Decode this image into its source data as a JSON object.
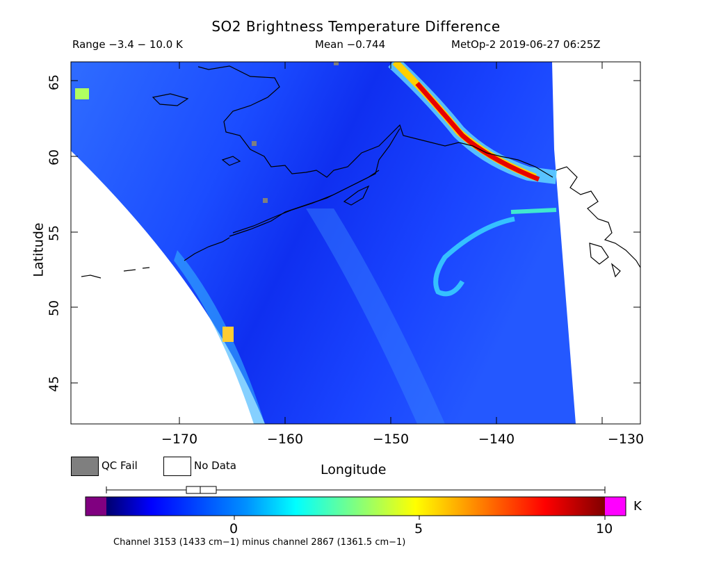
{
  "header": {
    "title": "SO2 Brightness Temperature Difference",
    "range": "Range −3.4 − 10.0 K",
    "mean": "Mean −0.744",
    "satellite_time": "MetOp-2 2019-06-27 06:25Z"
  },
  "axes": {
    "xlabel": "Longitude",
    "ylabel": "Latitude",
    "x_ticks": [
      "−170",
      "−160",
      "−150",
      "−140",
      "−130"
    ],
    "y_ticks": [
      "65",
      "60",
      "55",
      "50",
      "45"
    ],
    "x_range": [
      -179,
      -129
    ],
    "y_range": [
      42,
      66
    ]
  },
  "legend": {
    "qc_fail_label": "QC Fail",
    "qc_fail_color": "#7f7f7f",
    "no_data_label": "No Data",
    "no_data_color": "#ffffff"
  },
  "colorbar": {
    "unit": "K",
    "tick_labels": [
      "0",
      "5",
      "10"
    ],
    "range": [
      -3.4,
      10.0
    ],
    "under_color": "#800080",
    "over_color": "#ff00ff",
    "colormap": [
      "#00006e",
      "#0000ff",
      "#00a0ff",
      "#00ffff",
      "#80ff80",
      "#ffff00",
      "#ff8000",
      "#ff0000",
      "#800000"
    ],
    "boxplot": {
      "min": -3.4,
      "q1": -2.2,
      "median": -1.9,
      "q3": -0.9,
      "max": 10.0
    }
  },
  "footnote": "Channel 3153 (1433 cm−1) minus channel 2867 (1361.5 cm−1)",
  "colors": {
    "background_field": "#1a46ff",
    "plume": "#ff2a00"
  }
}
